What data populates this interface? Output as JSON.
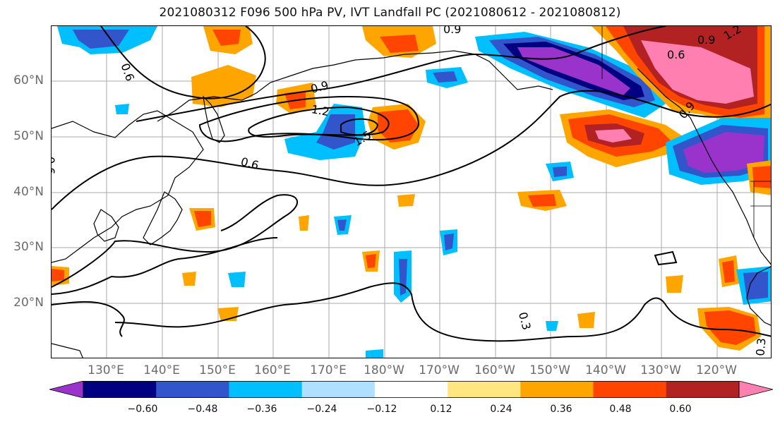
{
  "title": "2021080312 F096 500 hPa PV, IVT Landfall PC (2021080612 - 2021080812)",
  "map": {
    "lat_labels": [
      "60°N",
      "50°N",
      "40°N",
      "30°N",
      "20°N"
    ],
    "lon_labels": [
      "130°E",
      "140°E",
      "150°E",
      "160°E",
      "170°E",
      "180°W",
      "170°W",
      "160°W",
      "150°W",
      "140°W",
      "130°W",
      "120°W"
    ],
    "contour_labels": [
      "0.9",
      "0.6",
      "0.9",
      "1.2",
      "1.5",
      "0.6",
      "0.9",
      "0.6",
      "0.9",
      "1.2",
      "0.6",
      "0.3",
      "0.3"
    ]
  },
  "colorbar": {
    "tick_labels": [
      "−0.60",
      "−0.48",
      "−0.36",
      "−0.24",
      "−0.12",
      "0.12",
      "0.24",
      "0.36",
      "0.48",
      "0.60"
    ],
    "colors": [
      "#9933cc",
      "#000080",
      "#3355cc",
      "#00bfff",
      "#b0e0ff",
      "#ffffff",
      "#ffe680",
      "#ffa500",
      "#ff4500",
      "#b22222",
      "#ff80b0"
    ]
  }
}
